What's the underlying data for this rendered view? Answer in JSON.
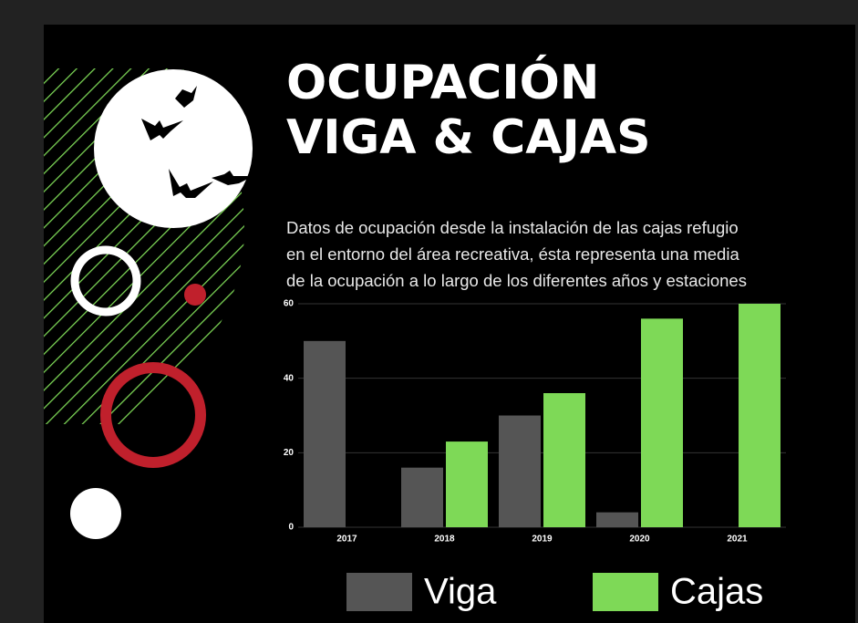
{
  "chart_data": {
    "type": "bar",
    "title": [
      "OCUPACIÓN",
      "VIGA & CAJAS"
    ],
    "subtitle": [
      "Datos de ocupación desde la instalación de las cajas refugio",
      "en el entorno del área recreativa, ésta representa una media",
      "de la ocupación a lo largo de los diferentes años y estaciones"
    ],
    "categories": [
      "2017",
      "2018",
      "2019",
      "2020",
      "2021"
    ],
    "series": [
      {
        "name": "Viga",
        "color": "#555555",
        "values": [
          50,
          16,
          30,
          4,
          0
        ]
      },
      {
        "name": "Cajas",
        "color": "#7ed957",
        "values": [
          0,
          23,
          36,
          56,
          60
        ]
      }
    ],
    "ylim": [
      0,
      60
    ],
    "yticks": [
      0,
      20,
      40,
      60
    ],
    "grid": true
  }
}
